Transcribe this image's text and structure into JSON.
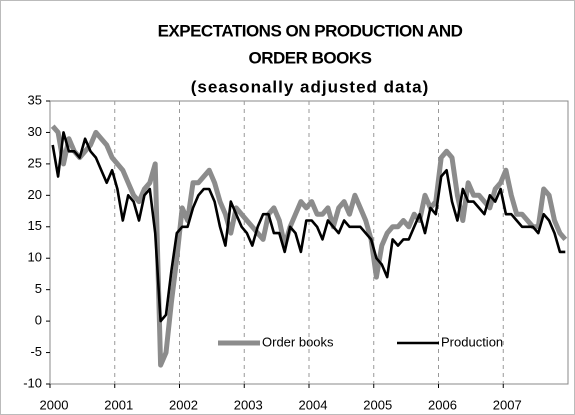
{
  "chart_data": {
    "type": "line",
    "title": [
      "EXPECTATIONS ON PRODUCTION AND",
      "ORDER BOOKS"
    ],
    "subtitle": "(seasonally adjusted data)",
    "categories": [
      "2000",
      null,
      null,
      null,
      null,
      null,
      null,
      null,
      null,
      null,
      null,
      null,
      "2001",
      null,
      null,
      null,
      null,
      null,
      null,
      null,
      null,
      null,
      null,
      null,
      "2002",
      null,
      null,
      null,
      null,
      null,
      null,
      null,
      null,
      null,
      null,
      null,
      "2003",
      null,
      null,
      null,
      null,
      null,
      null,
      null,
      null,
      null,
      null,
      null,
      "2004",
      null,
      null,
      null,
      null,
      null,
      null,
      null,
      null,
      null,
      null,
      null,
      "2005",
      null,
      null,
      null,
      null,
      null,
      null,
      null,
      null,
      null,
      null,
      null,
      "2006",
      null,
      null,
      null,
      null,
      null,
      null,
      null,
      null,
      null,
      null,
      null,
      "2007",
      null,
      null,
      null,
      null,
      null,
      null,
      null,
      null,
      null,
      null,
      null
    ],
    "series": [
      {
        "name": "Order books",
        "color": "#8c8c8c",
        "values": [
          31,
          30,
          25,
          29,
          27,
          26,
          27,
          28,
          30,
          29,
          28,
          26,
          25,
          24,
          22,
          20,
          19,
          21,
          22,
          25,
          -7,
          -5,
          3,
          10,
          18,
          16,
          22,
          22,
          23,
          24,
          22,
          19,
          17,
          14,
          18,
          17,
          16,
          15,
          14,
          13,
          17,
          18,
          16,
          12,
          15,
          17,
          19,
          18,
          19,
          17,
          17,
          18,
          15,
          18,
          19,
          17,
          20,
          18,
          16,
          13,
          7,
          12,
          14,
          15,
          15,
          16,
          15,
          17,
          16,
          20,
          18,
          19,
          26,
          27,
          26,
          20,
          16,
          22,
          20,
          20,
          19,
          18,
          21,
          22,
          24,
          20,
          17,
          17,
          16,
          15,
          15,
          21,
          20,
          16,
          14,
          13
        ]
      },
      {
        "name": "Production",
        "color": "#000000",
        "values": [
          28,
          23,
          30,
          27,
          27,
          26,
          29,
          27,
          26,
          24,
          22,
          24,
          21,
          16,
          20,
          19,
          16,
          20,
          21,
          14,
          0,
          1,
          8,
          14,
          15,
          15,
          18,
          20,
          21,
          21,
          19,
          15,
          12,
          19,
          17,
          15,
          14,
          12,
          15,
          17,
          17,
          14,
          14,
          11,
          15,
          14,
          11,
          16,
          16,
          15,
          13,
          16,
          15,
          14,
          16,
          15,
          15,
          15,
          14,
          13,
          10,
          9,
          7,
          13,
          12,
          13,
          13,
          15,
          17,
          14,
          18,
          17,
          23,
          24,
          19,
          16,
          21,
          19,
          19,
          18,
          17,
          20,
          19,
          21,
          17,
          17,
          16,
          15,
          15,
          15,
          14,
          17,
          16,
          14,
          11,
          11
        ]
      }
    ],
    "ylim": [
      -10,
      35
    ],
    "yticks": [
      -10,
      -5,
      0,
      5,
      10,
      15,
      20,
      25,
      30,
      35
    ],
    "grid": true,
    "legend": "lower right"
  }
}
